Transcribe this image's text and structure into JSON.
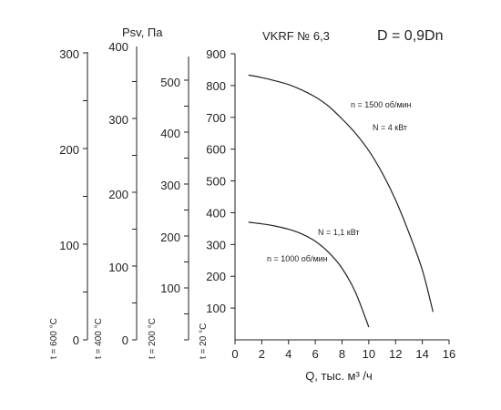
{
  "title": "VKRF № 6,3",
  "subtitle": "D = 0,9Dn",
  "psv_label": "Psv, Па",
  "xlabel": "Q, тыс. м³ /ч",
  "chart_data": {
    "type": "line",
    "xlim": [
      0,
      16
    ],
    "ylim": [
      0,
      900
    ],
    "x_ticks": [
      "0",
      "2",
      "4",
      "6",
      "8",
      "10",
      "12",
      "14",
      "16"
    ],
    "y_ticks": [
      "100",
      "200",
      "300",
      "400",
      "500",
      "600",
      "700",
      "800",
      "900"
    ],
    "grid": false,
    "series": [
      {
        "label_speed": "n = 1500 об/мин",
        "label_power": "N = 4 кВт",
        "points": [
          [
            1,
            833
          ],
          [
            2,
            825
          ],
          [
            3,
            815
          ],
          [
            4,
            803
          ],
          [
            5,
            786
          ],
          [
            6,
            764
          ],
          [
            7,
            735
          ],
          [
            8,
            695
          ],
          [
            9,
            650
          ],
          [
            10,
            595
          ],
          [
            11,
            525
          ],
          [
            12,
            440
          ],
          [
            13,
            337
          ],
          [
            14,
            220
          ],
          [
            14.8,
            88
          ]
        ]
      },
      {
        "label_speed": "n = 1000 об/мин",
        "label_power": "N = 1,1 кВт",
        "points": [
          [
            1,
            370
          ],
          [
            2,
            365
          ],
          [
            3,
            358
          ],
          [
            4,
            348
          ],
          [
            5,
            333
          ],
          [
            6,
            310
          ],
          [
            7,
            275
          ],
          [
            8,
            225
          ],
          [
            9,
            150
          ],
          [
            10,
            40
          ]
        ]
      }
    ],
    "temperature_axes": [
      {
        "label": "t = 600 °C",
        "ticks": [
          "0",
          "100",
          "200",
          "300"
        ]
      },
      {
        "label": "t = 400 °C",
        "ticks": [
          "0",
          "100",
          "200",
          "300",
          "400"
        ]
      },
      {
        "label": "t = 200 °C",
        "ticks": [
          "100",
          "200",
          "300",
          "400",
          "500"
        ]
      },
      {
        "label": "t = 20 °C",
        "ticks": []
      }
    ]
  }
}
